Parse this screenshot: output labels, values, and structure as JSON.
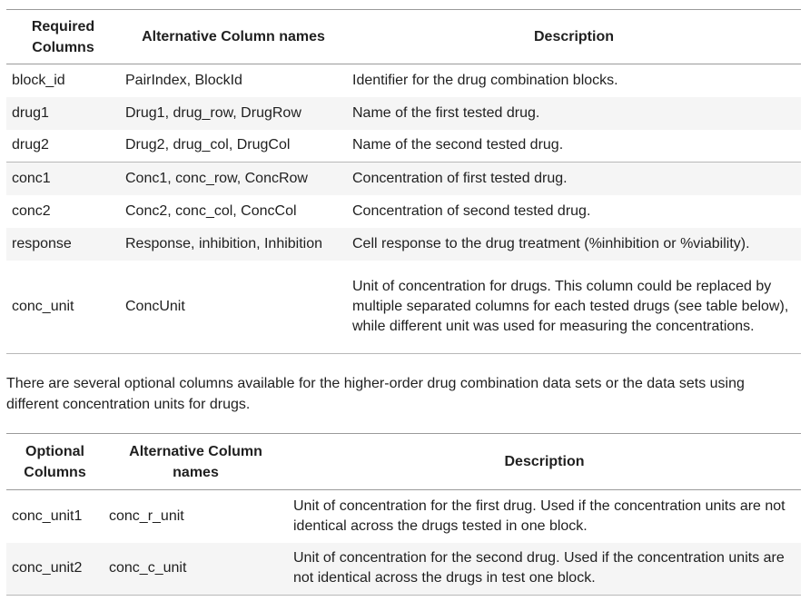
{
  "required_table": {
    "headers": [
      "Required Columns",
      "Alternative Column names",
      "Description"
    ],
    "rows": [
      [
        "block_id",
        "PairIndex, BlockId",
        "Identifier for the drug combination blocks."
      ],
      [
        "drug1",
        "Drug1, drug_row, DrugRow",
        "Name of the first tested drug."
      ],
      [
        "drug2",
        "Drug2, drug_col, DrugCol",
        "Name of the second tested drug."
      ],
      [
        "conc1",
        "Conc1, conc_row, ConcRow",
        "Concentration of first tested drug."
      ],
      [
        "conc2",
        "Conc2, conc_col, ConcCol",
        "Concentration of second tested drug."
      ],
      [
        "response",
        "Response, inhibition, Inhibition",
        "Cell response to the drug treatment (%inhibition or %viability)."
      ],
      [
        "conc_unit",
        "ConcUnit",
        "Unit of concentration for drugs. This column could be replaced by multiple separated columns for each tested drugs (see table below), while different unit was used for measuring the concentrations."
      ]
    ]
  },
  "paragraph": "There are several optional columns available for the higher-order drug combination data sets or the data sets using different concentration units for drugs.",
  "optional_table": {
    "headers": [
      "Optional Columns",
      "Alternative Column names",
      "Description"
    ],
    "rows": [
      [
        "conc_unit1",
        "conc_r_unit",
        "Unit of concentration for the first drug. Used if the concentration units are not identical across the drugs tested in one block."
      ],
      [
        "conc_unit2",
        "conc_c_unit",
        "Unit of concentration for the second drug. Used if the concentration units are not identical across the drugs in test one block."
      ]
    ]
  }
}
